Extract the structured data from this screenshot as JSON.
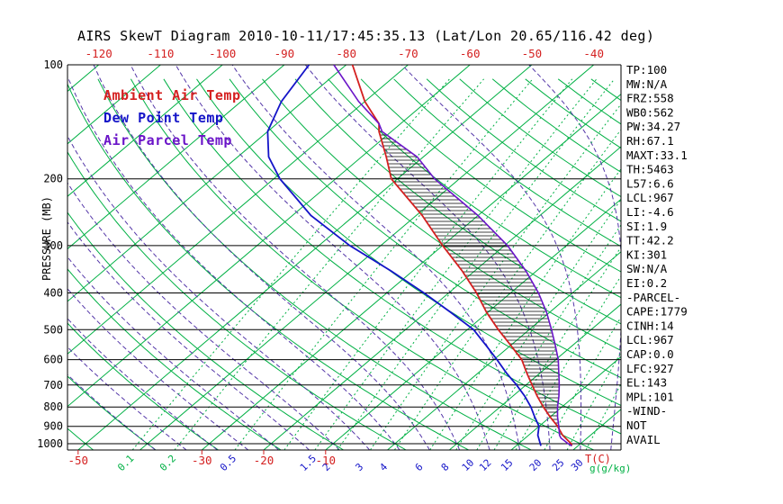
{
  "title": "AIRS SkewT Diagram 2010-10-11/17:45:35.13 (Lat/Lon 20.65/116.42 deg)",
  "colors": {
    "red": "#d42020",
    "blue": "#1414c8",
    "purple": "#6a14c8",
    "moist": "#5436a8",
    "green": "#00b044",
    "black": "#000000"
  },
  "legend": {
    "items": [
      {
        "label": "Ambient Air Temp",
        "color": "#d42020"
      },
      {
        "label": "Dew Point Temp",
        "color": "#1414c8"
      },
      {
        "label": "Air Parcel Temp",
        "color": "#6a14c8"
      }
    ]
  },
  "axes": {
    "pressure_label": "PRESSURE (MB)",
    "temp_unit_label": "T(C)",
    "mixing_unit_label": "g(g/kg)"
  },
  "stats_panel": {
    "lines": [
      "TP:100",
      "MW:N/A",
      "FRZ:558",
      "WB0:562",
      "PW:34.27",
      "RH:67.1",
      "MAXT:33.1",
      "TH:5463",
      "L57:6.6",
      "LCL:967",
      "LI:-4.6",
      "SI:1.9",
      "TT:42.2",
      "KI:301",
      "SW:N/A",
      "EI:0.2",
      "-PARCEL-",
      "CAPE:1779",
      "CINH:14",
      "LCL:967",
      "CAP:0.0",
      "LFC:927",
      "EL:143",
      "MPL:101",
      "-WIND-",
      "NOT",
      "AVAIL"
    ],
    "color": "#000000"
  },
  "chart_data": {
    "type": "line",
    "subtype": "skew-t-log-p",
    "units": {
      "pressure": "mb",
      "temperature": "C",
      "mixing_ratio": "g/kg"
    },
    "pressure_axis": {
      "scale": "log",
      "range": [
        100,
        1040
      ],
      "ticks": [
        100,
        200,
        300,
        400,
        500,
        600,
        700,
        800,
        900,
        1000
      ]
    },
    "temp_axis": {
      "unit": "T(C)",
      "top_ticks": [
        -120,
        -110,
        -100,
        -90,
        -80,
        -70,
        -60,
        -50,
        -40
      ],
      "bottom_ticks": [
        -50,
        -30,
        -20,
        -10
      ]
    },
    "background": {
      "isotherms_c": [
        -130,
        -120,
        -110,
        -100,
        -90,
        -80,
        -70,
        -60,
        -50,
        -40,
        -30,
        -20,
        -10,
        0,
        10,
        20,
        30,
        40
      ],
      "dry_adiabats_c": [
        -60,
        -50,
        -40,
        -30,
        -20,
        -10,
        0,
        10,
        20,
        30,
        40,
        50,
        60,
        70,
        80,
        90,
        100,
        110,
        120,
        130,
        140,
        150,
        160,
        170
      ],
      "moist_adiabats_c": [
        -40,
        -35,
        -30,
        -25,
        -20,
        -15,
        -10,
        -5,
        0,
        5,
        10,
        15,
        20,
        25,
        30,
        35
      ],
      "mixing_ratio_lines_gkg": [
        0.1,
        0.2,
        0.5,
        1,
        1.5,
        2,
        3,
        4,
        6,
        8,
        10,
        12,
        15,
        20,
        25,
        30
      ],
      "mixing_ratio_labels": [
        {
          "text": "0.1",
          "value": 0.1,
          "color": "#00b044"
        },
        {
          "text": "0.2",
          "value": 0.2,
          "color": "#00b044"
        },
        {
          "text": "0.5",
          "value": 0.5,
          "color": "#1414c8"
        },
        {
          "text": "1.5",
          "value": 1.5,
          "color": "#1414c8"
        },
        {
          "text": "2",
          "value": 2,
          "color": "#1414c8"
        },
        {
          "text": "3",
          "value": 3,
          "color": "#1414c8"
        },
        {
          "text": "4",
          "value": 4,
          "color": "#1414c8"
        },
        {
          "text": "6",
          "value": 6,
          "color": "#1414c8"
        },
        {
          "text": "8",
          "value": 8,
          "color": "#1414c8"
        },
        {
          "text": "10",
          "value": 10,
          "color": "#1414c8"
        },
        {
          "text": "12",
          "value": 12,
          "color": "#1414c8"
        },
        {
          "text": "15",
          "value": 15,
          "color": "#1414c8"
        },
        {
          "text": "20",
          "value": 20,
          "color": "#1414c8"
        },
        {
          "text": "25",
          "value": 25,
          "color": "#1414c8"
        },
        {
          "text": "30",
          "value": 30,
          "color": "#1414c8"
        }
      ]
    },
    "series": [
      {
        "id": "ambient-temp",
        "name": "Ambient Air Temp",
        "color": "#d42020",
        "width": 1.8,
        "points": [
          [
            1013,
            29
          ],
          [
            1000,
            28.5
          ],
          [
            950,
            25.5
          ],
          [
            900,
            23
          ],
          [
            850,
            20
          ],
          [
            800,
            17
          ],
          [
            750,
            14
          ],
          [
            700,
            11
          ],
          [
            650,
            7.8
          ],
          [
            600,
            4.5
          ],
          [
            550,
            0
          ],
          [
            500,
            -5
          ],
          [
            450,
            -10.2
          ],
          [
            400,
            -15.5
          ],
          [
            350,
            -22
          ],
          [
            300,
            -30
          ],
          [
            250,
            -39
          ],
          [
            200,
            -51
          ],
          [
            175,
            -56
          ],
          [
            150,
            -62
          ],
          [
            143,
            -63.5
          ],
          [
            125,
            -70
          ],
          [
            100,
            -79
          ]
        ]
      },
      {
        "id": "dew-point",
        "name": "Dew Point Temp",
        "color": "#1414c8",
        "width": 1.8,
        "points": [
          [
            1013,
            24
          ],
          [
            1000,
            23.5
          ],
          [
            950,
            21.5
          ],
          [
            900,
            20
          ],
          [
            850,
            17.5
          ],
          [
            800,
            15
          ],
          [
            750,
            12
          ],
          [
            700,
            8.5
          ],
          [
            650,
            4.5
          ],
          [
            600,
            0.5
          ],
          [
            550,
            -4
          ],
          [
            500,
            -9
          ],
          [
            450,
            -16
          ],
          [
            400,
            -24
          ],
          [
            350,
            -33.5
          ],
          [
            300,
            -45
          ],
          [
            250,
            -57
          ],
          [
            200,
            -69
          ],
          [
            175,
            -75
          ],
          [
            150,
            -80
          ],
          [
            125,
            -83.5
          ],
          [
            100,
            -86
          ]
        ]
      },
      {
        "id": "air-parcel",
        "name": "Air Parcel Temp",
        "color": "#6a14c8",
        "width": 1.6,
        "points": [
          [
            1013,
            29
          ],
          [
            1000,
            28
          ],
          [
            967,
            25.8
          ],
          [
            950,
            25
          ],
          [
            900,
            23.2
          ],
          [
            850,
            21.2
          ],
          [
            800,
            19.3
          ],
          [
            750,
            17.5
          ],
          [
            700,
            15.4
          ],
          [
            650,
            13
          ],
          [
            600,
            10.4
          ],
          [
            550,
            7.2
          ],
          [
            500,
            3.6
          ],
          [
            450,
            -0.5
          ],
          [
            400,
            -5.5
          ],
          [
            350,
            -11.7
          ],
          [
            300,
            -19.5
          ],
          [
            250,
            -30
          ],
          [
            200,
            -44
          ],
          [
            175,
            -51
          ],
          [
            150,
            -61.5
          ],
          [
            143,
            -63.5
          ],
          [
            125,
            -71
          ],
          [
            100,
            -82
          ]
        ]
      }
    ],
    "cape_hatch": {
      "env_series": "Ambient Air Temp",
      "parcel_series": "Air Parcel Temp",
      "top_pressure": 143,
      "bottom_pressure": 927,
      "style": "horizontal-hatch"
    }
  }
}
